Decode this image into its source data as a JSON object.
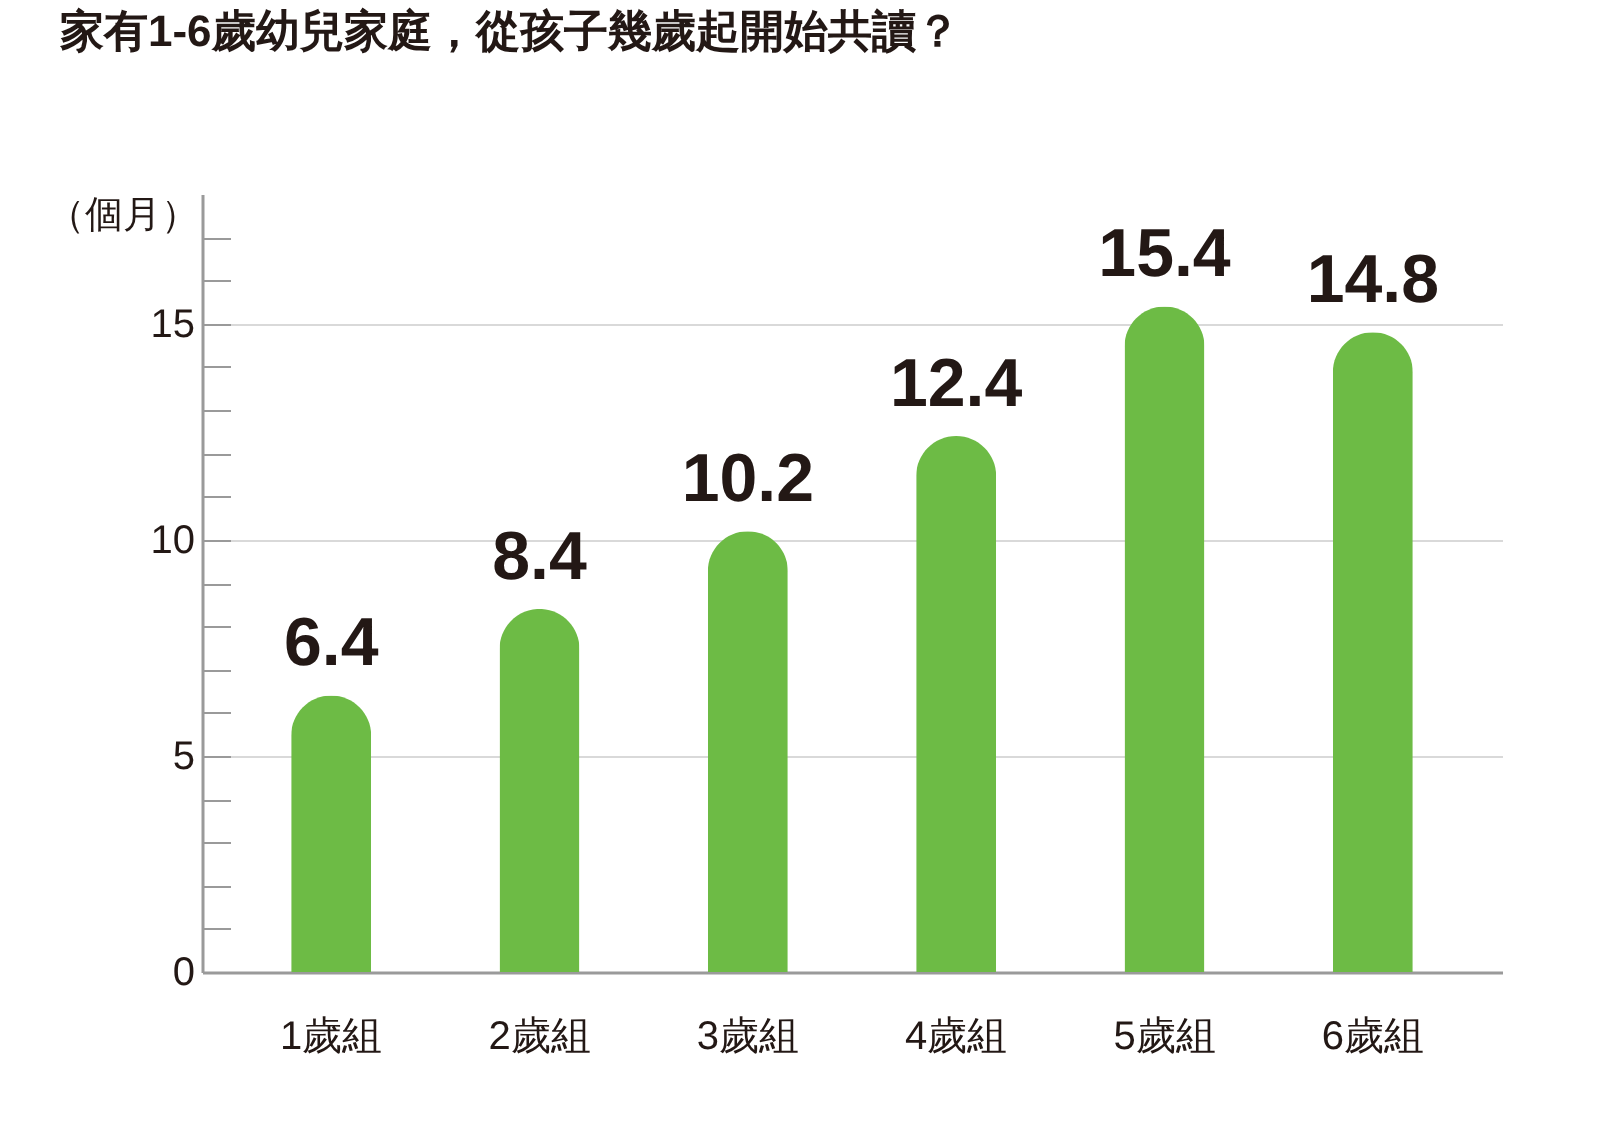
{
  "chart_data": {
    "type": "bar",
    "title": "家有1-6歲幼兒家庭，從孩子幾歲起開始共讀？",
    "ylabel": "（個月）",
    "categories": [
      "1歲組",
      "2歲組",
      "3歲組",
      "4歲組",
      "5歲組",
      "6歲組"
    ],
    "values": [
      6.4,
      8.4,
      10.2,
      12.4,
      15.4,
      14.8
    ],
    "color": "#6dbb45",
    "ylim": [
      0,
      18
    ],
    "yticks": [
      0,
      {
        "value": 1,
        "label": null
      },
      {
        "value": 2,
        "label": null
      },
      {
        "value": 3,
        "label": null
      },
      {
        "value": 4,
        "label": null
      },
      5,
      {
        "value": 6,
        "label": null
      },
      {
        "value": 7,
        "label": null
      },
      {
        "value": 8,
        "label": null
      },
      {
        "value": 9,
        "label": null
      },
      10,
      {
        "value": 11,
        "label": null
      },
      {
        "value": 12,
        "label": null
      },
      {
        "value": 13,
        "label": null
      },
      {
        "value": 14,
        "label": null
      },
      15,
      {
        "value": 16,
        "label": null
      },
      {
        "value": 17,
        "label": null
      }
    ],
    "grid": "y",
    "data_labels": true
  }
}
